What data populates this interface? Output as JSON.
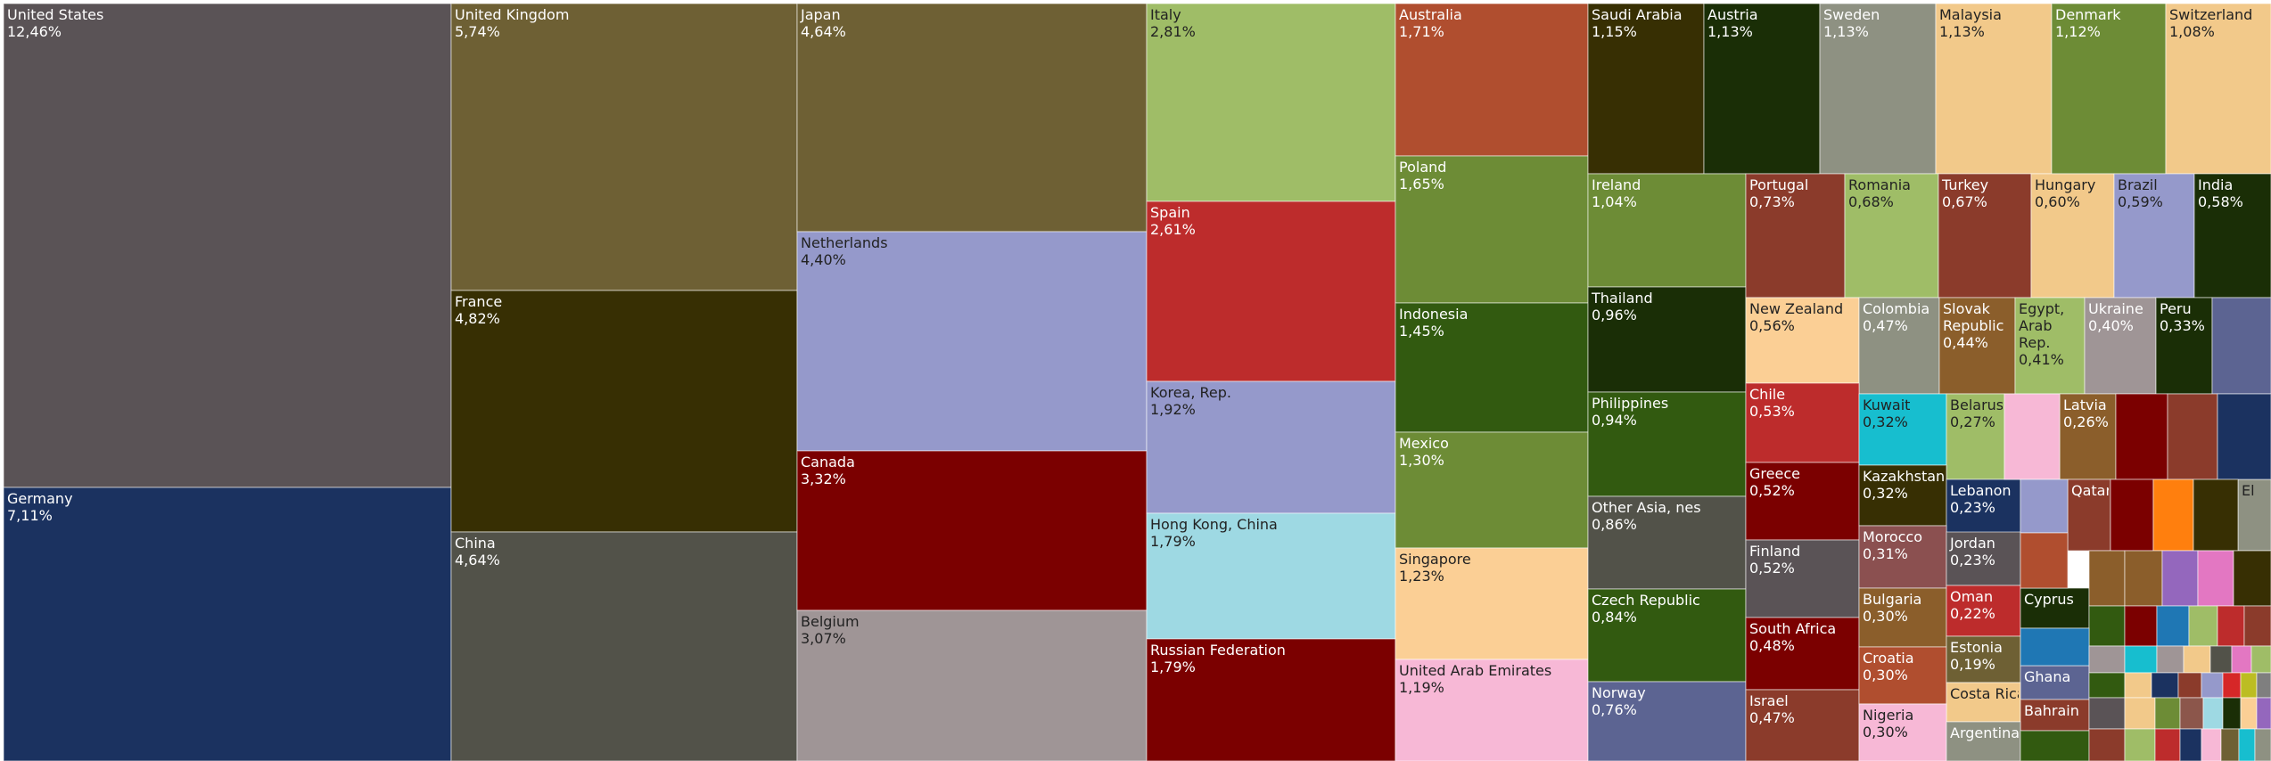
{
  "chart_data": {
    "type": "treemap",
    "unit": "%",
    "items": [
      {
        "name": "United States",
        "value": "12,46%",
        "color": "#5a5356"
      },
      {
        "name": "Germany",
        "value": "7,11%",
        "color": "#1b3260"
      },
      {
        "name": "United Kingdom",
        "value": "5,74%",
        "color": "#6e6034"
      },
      {
        "name": "France",
        "value": "4,82%",
        "color": "#372f03"
      },
      {
        "name": "China",
        "value": "4,64%",
        "color": "#525249"
      },
      {
        "name": "Japan",
        "value": "4,64%",
        "color": "#6e6034"
      },
      {
        "name": "Netherlands",
        "value": "4,40%",
        "color": "#9599cb"
      },
      {
        "name": "Canada",
        "value": "3,32%",
        "color": "#7b0000"
      },
      {
        "name": "Belgium",
        "value": "3,07%",
        "color": "#9f9596"
      },
      {
        "name": "Italy",
        "value": "2,81%",
        "color": "#9fbd67"
      },
      {
        "name": "Spain",
        "value": "2,61%",
        "color": "#bd2c2c"
      },
      {
        "name": "Korea, Rep.",
        "value": "1,92%",
        "color": "#9599cb"
      },
      {
        "name": "Hong Kong, China",
        "value": "1,79%",
        "color": "#9ed9e3"
      },
      {
        "name": "Russian Federation",
        "value": "1,79%",
        "color": "#7b0000"
      },
      {
        "name": "Australia",
        "value": "1,71%",
        "color": "#b04e2f"
      },
      {
        "name": "Poland",
        "value": "1,65%",
        "color": "#6d8c36"
      },
      {
        "name": "Indonesia",
        "value": "1,45%",
        "color": "#325a10"
      },
      {
        "name": "Mexico",
        "value": "1,30%",
        "color": "#6d8c36"
      },
      {
        "name": "Singapore",
        "value": "1,23%",
        "color": "#fbcf95"
      },
      {
        "name": "United Arab Emirates",
        "value": "1,19%",
        "color": "#f7b8d6"
      },
      {
        "name": "Saudi Arabia",
        "value": "1,15%",
        "color": "#372f03"
      },
      {
        "name": "Austria",
        "value": "1,13%",
        "color": "#1a2e06"
      },
      {
        "name": "Sweden",
        "value": "1,13%",
        "color": "#8e9182"
      },
      {
        "name": "Malaysia",
        "value": "1,13%",
        "color": "#f2c98a"
      },
      {
        "name": "Denmark",
        "value": "1,12%",
        "color": "#6d8c36"
      },
      {
        "name": "Switzerland",
        "value": "1,08%",
        "color": "#f2c98a"
      },
      {
        "name": "Ireland",
        "value": "1,04%",
        "color": "#6d8c36"
      },
      {
        "name": "Thailand",
        "value": "0,96%",
        "color": "#1a2e06"
      },
      {
        "name": "Philippines",
        "value": "0,94%",
        "color": "#325a10"
      },
      {
        "name": "Other Asia, nes",
        "value": "0,86%",
        "color": "#525249"
      },
      {
        "name": "Czech Republic",
        "value": "0,84%",
        "color": "#325a10"
      },
      {
        "name": "Norway",
        "value": "0,76%",
        "color": "#5c6492"
      },
      {
        "name": "Portugal",
        "value": "0,73%",
        "color": "#8b3b2b"
      },
      {
        "name": "Romania",
        "value": "0,68%",
        "color": "#9fbd67"
      },
      {
        "name": "Turkey",
        "value": "0,67%",
        "color": "#8b3b2b"
      },
      {
        "name": "Hungary",
        "value": "0,60%",
        "color": "#f2c98a"
      },
      {
        "name": "Brazil",
        "value": "0,59%",
        "color": "#9599cb"
      },
      {
        "name": "India",
        "value": "0,58%",
        "color": "#1a2e06"
      },
      {
        "name": "New Zealand",
        "value": "0,56%",
        "color": "#fbcf95"
      },
      {
        "name": "Colombia",
        "value": "0,47%",
        "color": "#8e9182"
      },
      {
        "name": "Slovak Republic",
        "value": "0,44%",
        "color": "#8b5e2b"
      },
      {
        "name": "Egypt, Arab Rep.",
        "value": "0,41%",
        "color": "#9fbd67"
      },
      {
        "name": "Ukraine",
        "value": "0,40%",
        "color": "#9f9596"
      },
      {
        "name": "Peru",
        "value": "0,33%",
        "color": "#1a2e06"
      },
      {
        "name": "Chile",
        "value": "0,53%",
        "color": "#bd2c2c"
      },
      {
        "name": "Greece",
        "value": "0,52%",
        "color": "#7b0000"
      },
      {
        "name": "Finland",
        "value": "0,52%",
        "color": "#5a5356"
      },
      {
        "name": "South Africa",
        "value": "0,48%",
        "color": "#7b0000"
      },
      {
        "name": "Israel",
        "value": "0,47%",
        "color": "#8b3b2b"
      },
      {
        "name": "Kuwait",
        "value": "0,32%",
        "color": "#17becf"
      },
      {
        "name": "Belarus",
        "value": "0,27%",
        "color": "#9fbd67"
      },
      {
        "name": "Latvia",
        "value": "0,26%",
        "color": "#8b5e2b"
      },
      {
        "name": "Kazakhstan",
        "value": "0,32%",
        "color": "#372f03"
      },
      {
        "name": "Lebanon",
        "value": "0,23%",
        "color": "#1b3260"
      },
      {
        "name": "Qatar",
        "value": "",
        "color": "#8b3b2b"
      },
      {
        "name": "El",
        "value": "",
        "color": "#8e9182"
      },
      {
        "name": "Morocco",
        "value": "0,31%",
        "color": "#8b5050"
      },
      {
        "name": "Jordan",
        "value": "0,23%",
        "color": "#5a5356"
      },
      {
        "name": "Bulgaria",
        "value": "0,30%",
        "color": "#8b5e2b"
      },
      {
        "name": "Oman",
        "value": "0,22%",
        "color": "#bd2c2c"
      },
      {
        "name": "Cyprus",
        "value": "",
        "color": "#1a2e06"
      },
      {
        "name": "Croatia",
        "value": "0,30%",
        "color": "#b04e2f"
      },
      {
        "name": "Estonia",
        "value": "0,19%",
        "color": "#6e6034"
      },
      {
        "name": "Ghana",
        "value": "",
        "color": "#5c6492"
      },
      {
        "name": "Costa Rica",
        "value": "",
        "color": "#f2c98a"
      },
      {
        "name": "Bahrain",
        "value": "",
        "color": "#8b3b2b"
      },
      {
        "name": "Nigeria",
        "value": "0,30%",
        "color": "#f7b8d6"
      },
      {
        "name": "Argentina",
        "value": "",
        "color": "#8e9182"
      }
    ]
  }
}
